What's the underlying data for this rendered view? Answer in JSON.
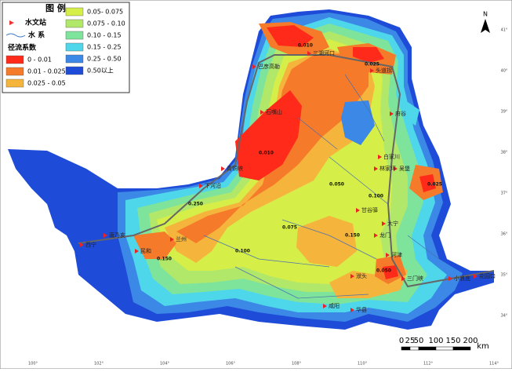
{
  "legend": {
    "title": "图 例",
    "station": "水文站",
    "river": "水 系",
    "class_title": "径流系数",
    "classes": [
      {
        "label": "0 - 0.01",
        "color": "#ff2a1a"
      },
      {
        "label": "0.01 - 0.025",
        "color": "#f57a2a"
      },
      {
        "label": "0.025 - 0.05",
        "color": "#f5b43c"
      },
      {
        "label": "0.05- 0.075",
        "color": "#d6ee48"
      },
      {
        "label": "0.075 - 0.10",
        "color": "#b2e86a"
      },
      {
        "label": "0.10 - 0.15",
        "color": "#7ee49c"
      },
      {
        "label": "0.15 - 0.25",
        "color": "#4ed6ea"
      },
      {
        "label": "0.25 - 0.50",
        "color": "#3b88e6"
      },
      {
        "label": "0.50以上",
        "color": "#1e4cd8"
      }
    ]
  },
  "north": "N",
  "scale": {
    "ticks": [
      0,
      25,
      50,
      100,
      150,
      200
    ],
    "unit": "km"
  },
  "places": [
    "三湖河口",
    "巴彦高勒",
    "石嘴山",
    "青铜峡",
    "下河沿",
    "兰州",
    "西宁",
    "民和",
    "唐乃亥",
    "头道拐",
    "府谷",
    "吴堡",
    "林家坪",
    "白家川",
    "甘谷驿",
    "龙门",
    "洑头",
    "华县",
    "咸阳",
    "三门峡",
    "小浪底",
    "花园口",
    "河津",
    "大宁"
  ],
  "contours": [
    "0.010",
    "0.025",
    "0.050",
    "0.075",
    "0.100",
    "0.150",
    "0.250",
    "0.010",
    "0.025",
    "0.050",
    "0.100",
    "0.150"
  ],
  "lat_ticks": [
    "41°",
    "40°",
    "39°",
    "38°",
    "37°",
    "36°",
    "35°",
    "34°"
  ],
  "lon_ticks": [
    "100°",
    "102°",
    "104°",
    "106°",
    "108°",
    "110°",
    "112°",
    "114°"
  ]
}
